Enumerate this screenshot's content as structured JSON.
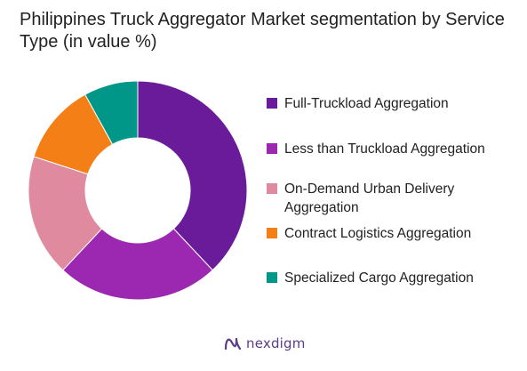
{
  "chart_data": {
    "type": "pie",
    "title": "Philippines Truck Aggregator Market segmentation by Service Type (in value %)",
    "categories": [
      "Full-Truckload Aggregation",
      "Less than Truckload Aggregation",
      "On-Demand Urban Delivery Aggregation",
      "Contract Logistics Aggregation",
      "Specialized Cargo Aggregation"
    ],
    "values": [
      38,
      24,
      18,
      12,
      8
    ],
    "colors": [
      "#6a1b9a",
      "#9c27b0",
      "#e08aa0",
      "#f57f17",
      "#009688"
    ],
    "legend_position": "right"
  },
  "legend": [
    {
      "label": "Full-Truckload Aggregation",
      "color": "#6a1b9a"
    },
    {
      "label": "Less than Truckload Aggregation",
      "color": "#9c27b0"
    },
    {
      "label": "On-Demand Urban Delivery Aggregation",
      "color": "#e08aa0"
    },
    {
      "label": "Contract Logistics Aggregation",
      "color": "#f57f17"
    },
    {
      "label": "Specialized Cargo Aggregation",
      "color": "#009688"
    }
  ],
  "brand": {
    "name": "nexdigm",
    "icon": "nexdigm-logo-icon",
    "color": "#5a3d8a"
  }
}
